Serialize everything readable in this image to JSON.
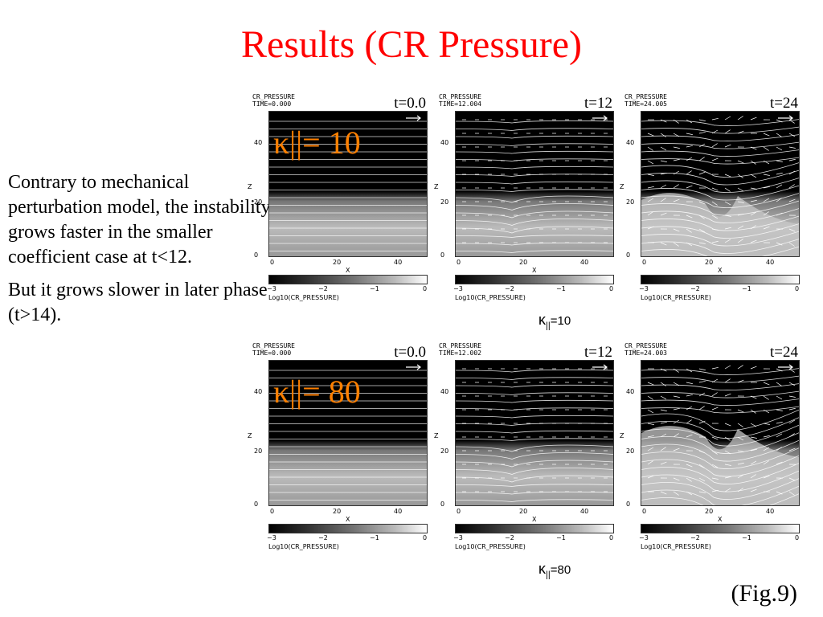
{
  "slide": {
    "title": "Results (CR Pressure)",
    "paragraphs": [
      "Contrary to mechanical perturbation model, the instability grows faster in the smaller coefficient case at t<12.",
      "But it grows slower in later phase (t>14)."
    ],
    "figure_label": "(Fig.9)"
  },
  "figure": {
    "rows": [
      {
        "kappa_overlay": "κ||= 10",
        "kappa_caption": "κ",
        "kappa_caption_sub": "||",
        "kappa_caption_value": "=10",
        "panels": [
          {
            "var_name": "CR_PRESSURE",
            "time_label": "TIME=0.000",
            "t": "t=0.0",
            "stage": 0
          },
          {
            "var_name": "CR_PRESSURE",
            "time_label": "TIME=12.004",
            "t": "t=12",
            "stage": 1
          },
          {
            "var_name": "CR_PRESSURE",
            "time_label": "TIME=24.005",
            "t": "t=24",
            "stage": 2
          }
        ]
      },
      {
        "kappa_overlay": "κ||= 80",
        "kappa_caption": "κ",
        "kappa_caption_sub": "||",
        "kappa_caption_value": "=80",
        "panels": [
          {
            "var_name": "CR_PRESSURE",
            "time_label": "TIME=0.000",
            "t": "t=0.0",
            "stage": 0
          },
          {
            "var_name": "CR_PRESSURE",
            "time_label": "TIME=12.002",
            "t": "t=12",
            "stage": 1
          },
          {
            "var_name": "CR_PRESSURE",
            "time_label": "TIME=24.003",
            "t": "t=24",
            "stage": 3
          }
        ]
      }
    ],
    "axes": {
      "xlabel": "X",
      "ylabel": "Z",
      "xticks": [
        "0",
        "20",
        "40"
      ],
      "yticks": [
        "0",
        "20",
        "40"
      ],
      "colorbar_ticks": [
        "−3",
        "−2",
        "−1",
        "0"
      ],
      "colorbar_label": "Log10(CR_PRESSURE)"
    }
  }
}
